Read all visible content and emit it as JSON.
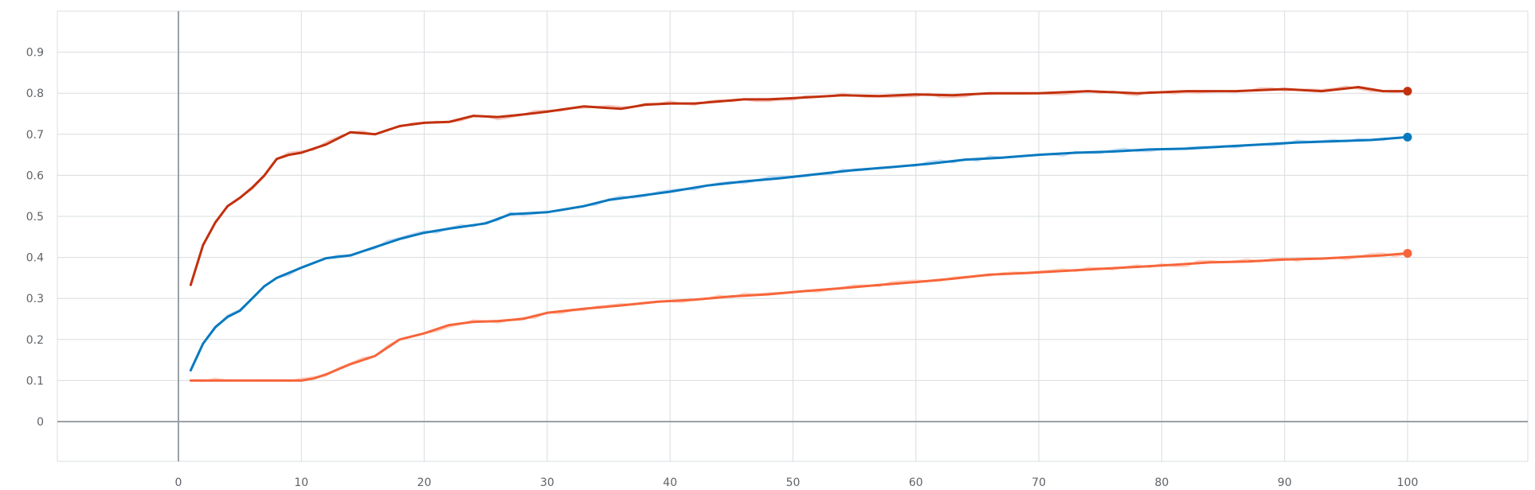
{
  "chart_data": {
    "type": "line",
    "xlim": [
      -10,
      110
    ],
    "ylim": [
      -0.1,
      1.0
    ],
    "x_ticks": [
      0,
      10,
      20,
      30,
      40,
      50,
      60,
      70,
      80,
      90,
      100
    ],
    "x_tick_labels": [
      "0",
      "10",
      "20",
      "30",
      "40",
      "50",
      "60",
      "70",
      "80",
      "90",
      "100"
    ],
    "y_ticks": [
      0,
      0.1,
      0.2,
      0.3,
      0.4,
      0.5,
      0.6,
      0.7,
      0.8,
      0.9
    ],
    "y_tick_labels": [
      "0",
      "0.1",
      "0.2",
      "0.3",
      "0.4",
      "0.5",
      "0.6",
      "0.7",
      "0.8",
      "0.9"
    ],
    "grid": true,
    "smoothed_overlay": true,
    "series": [
      {
        "color": "#c2300d",
        "raw_color": "#f4c7bd",
        "points": [
          [
            1,
            0.333
          ],
          [
            2,
            0.43
          ],
          [
            3,
            0.485
          ],
          [
            4,
            0.525
          ],
          [
            5,
            0.545
          ],
          [
            6,
            0.57
          ],
          [
            7,
            0.6
          ],
          [
            8,
            0.64
          ],
          [
            9,
            0.65
          ],
          [
            10,
            0.655
          ],
          [
            12,
            0.675
          ],
          [
            14,
            0.705
          ],
          [
            16,
            0.7
          ],
          [
            18,
            0.72
          ],
          [
            20,
            0.728
          ],
          [
            22,
            0.73
          ],
          [
            24,
            0.745
          ],
          [
            26,
            0.742
          ],
          [
            28,
            0.748
          ],
          [
            30,
            0.755
          ],
          [
            33,
            0.768
          ],
          [
            36,
            0.762
          ],
          [
            38,
            0.772
          ],
          [
            40,
            0.775
          ],
          [
            42,
            0.775
          ],
          [
            44,
            0.78
          ],
          [
            46,
            0.785
          ],
          [
            48,
            0.785
          ],
          [
            50,
            0.788
          ],
          [
            54,
            0.795
          ],
          [
            57,
            0.793
          ],
          [
            60,
            0.797
          ],
          [
            63,
            0.795
          ],
          [
            66,
            0.8
          ],
          [
            70,
            0.8
          ],
          [
            74,
            0.805
          ],
          [
            78,
            0.8
          ],
          [
            82,
            0.805
          ],
          [
            86,
            0.805
          ],
          [
            90,
            0.81
          ],
          [
            93,
            0.805
          ],
          [
            96,
            0.815
          ],
          [
            98,
            0.805
          ],
          [
            100,
            0.805
          ]
        ]
      },
      {
        "color": "#0779bf",
        "raw_color": "#c5ddf4",
        "points": [
          [
            1,
            0.125
          ],
          [
            2,
            0.19
          ],
          [
            3,
            0.23
          ],
          [
            4,
            0.255
          ],
          [
            5,
            0.27
          ],
          [
            6,
            0.3
          ],
          [
            7,
            0.33
          ],
          [
            8,
            0.35
          ],
          [
            10,
            0.375
          ],
          [
            12,
            0.398
          ],
          [
            14,
            0.405
          ],
          [
            16,
            0.425
          ],
          [
            18,
            0.445
          ],
          [
            20,
            0.46
          ],
          [
            22,
            0.47
          ],
          [
            25,
            0.483
          ],
          [
            27,
            0.505
          ],
          [
            30,
            0.51
          ],
          [
            33,
            0.525
          ],
          [
            35,
            0.54
          ],
          [
            37,
            0.548
          ],
          [
            40,
            0.56
          ],
          [
            43,
            0.575
          ],
          [
            46,
            0.585
          ],
          [
            49,
            0.593
          ],
          [
            52,
            0.603
          ],
          [
            55,
            0.613
          ],
          [
            58,
            0.62
          ],
          [
            61,
            0.628
          ],
          [
            64,
            0.638
          ],
          [
            67,
            0.643
          ],
          [
            70,
            0.65
          ],
          [
            73,
            0.655
          ],
          [
            76,
            0.658
          ],
          [
            79,
            0.663
          ],
          [
            82,
            0.665
          ],
          [
            85,
            0.67
          ],
          [
            88,
            0.675
          ],
          [
            91,
            0.68
          ],
          [
            94,
            0.683
          ],
          [
            97,
            0.686
          ],
          [
            100,
            0.693
          ]
        ]
      },
      {
        "color": "#f7653a",
        "raw_color": "#fdd2c3",
        "points": [
          [
            1,
            0.1
          ],
          [
            5,
            0.1
          ],
          [
            10,
            0.1
          ],
          [
            11,
            0.105
          ],
          [
            12,
            0.115
          ],
          [
            14,
            0.14
          ],
          [
            16,
            0.16
          ],
          [
            18,
            0.2
          ],
          [
            20,
            0.215
          ],
          [
            22,
            0.235
          ],
          [
            24,
            0.243
          ],
          [
            26,
            0.245
          ],
          [
            28,
            0.25
          ],
          [
            30,
            0.265
          ],
          [
            33,
            0.275
          ],
          [
            36,
            0.283
          ],
          [
            39,
            0.292
          ],
          [
            42,
            0.297
          ],
          [
            45,
            0.305
          ],
          [
            48,
            0.31
          ],
          [
            51,
            0.318
          ],
          [
            54,
            0.325
          ],
          [
            57,
            0.333
          ],
          [
            60,
            0.34
          ],
          [
            63,
            0.348
          ],
          [
            66,
            0.358
          ],
          [
            69,
            0.362
          ],
          [
            72,
            0.367
          ],
          [
            75,
            0.372
          ],
          [
            78,
            0.377
          ],
          [
            81,
            0.382
          ],
          [
            84,
            0.388
          ],
          [
            87,
            0.39
          ],
          [
            90,
            0.395
          ],
          [
            93,
            0.397
          ],
          [
            96,
            0.402
          ],
          [
            98,
            0.405
          ],
          [
            100,
            0.41
          ]
        ]
      }
    ]
  }
}
